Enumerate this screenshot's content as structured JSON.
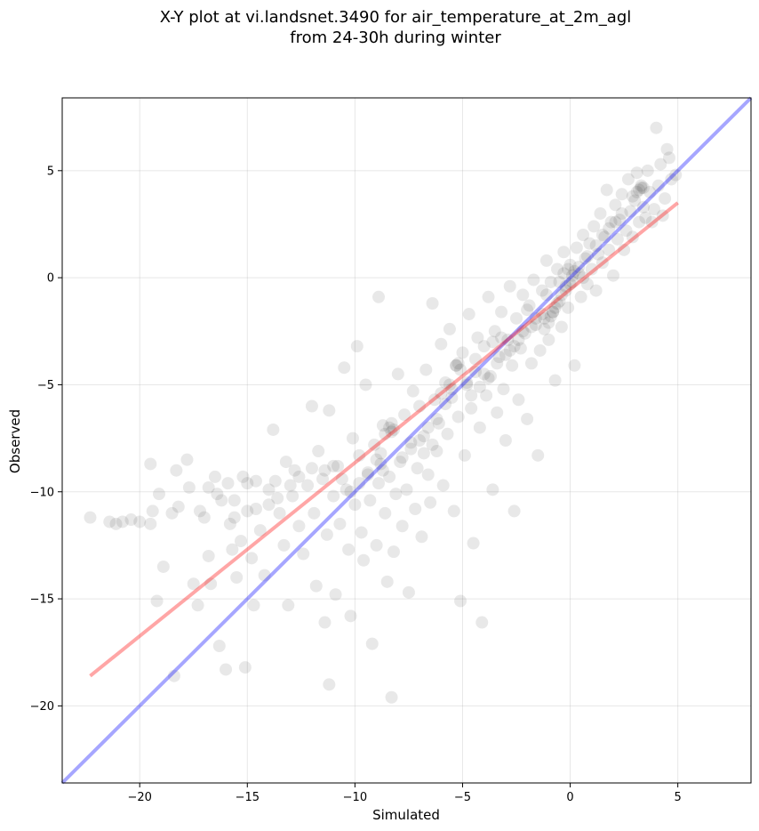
{
  "chart_data": {
    "type": "scatter",
    "title_line1": "X-Y plot at vi.landsnet.3490 for air_temperature_at_2m_agl",
    "title_line2": "from 24-30h during winter",
    "xlabel": "Simulated",
    "ylabel": "Observed",
    "xlim": [
      -23.6,
      8.4
    ],
    "ylim": [
      -23.6,
      8.4
    ],
    "x_ticks": [
      -20,
      -15,
      -10,
      -5,
      0,
      5
    ],
    "y_ticks": [
      -20,
      -15,
      -10,
      -5,
      0,
      5
    ],
    "x_tick_labels": [
      "−20",
      "−15",
      "−10",
      "−5",
      "0",
      "5"
    ],
    "y_tick_labels": [
      "−20",
      "−15",
      "−10",
      "−5",
      "0",
      "5"
    ],
    "grid": true,
    "marker_color": "#000000",
    "marker_alpha": 0.09,
    "points": [
      [
        -22.3,
        -11.2
      ],
      [
        -21.4,
        -11.4
      ],
      [
        -21.1,
        -11.5
      ],
      [
        -20.8,
        -11.4
      ],
      [
        -20.4,
        -11.3
      ],
      [
        -20.0,
        -11.4
      ],
      [
        -19.5,
        -8.7
      ],
      [
        -19.5,
        -11.5
      ],
      [
        -19.4,
        -10.9
      ],
      [
        -19.2,
        -15.1
      ],
      [
        -19.1,
        -10.1
      ],
      [
        -18.9,
        -13.5
      ],
      [
        -18.5,
        -11.0
      ],
      [
        -18.4,
        -18.6
      ],
      [
        -18.3,
        -9.0
      ],
      [
        -18.2,
        -10.7
      ],
      [
        -17.8,
        -8.5
      ],
      [
        -17.7,
        -9.8
      ],
      [
        -17.5,
        -14.3
      ],
      [
        -17.3,
        -15.3
      ],
      [
        -17.0,
        -11.2
      ],
      [
        -16.8,
        -13.0
      ],
      [
        -16.7,
        -14.3
      ],
      [
        -16.5,
        -9.3
      ],
      [
        -16.4,
        -10.1
      ],
      [
        -16.3,
        -17.2
      ],
      [
        -16.0,
        -18.3
      ],
      [
        -15.9,
        -9.6
      ],
      [
        -15.8,
        -11.5
      ],
      [
        -15.7,
        -12.7
      ],
      [
        -15.6,
        -10.4
      ],
      [
        -15.5,
        -14.0
      ],
      [
        -15.3,
        -12.3
      ],
      [
        -15.2,
        -9.3
      ],
      [
        -15.1,
        -18.2
      ],
      [
        -15.0,
        -10.9
      ],
      [
        -14.8,
        -13.1
      ],
      [
        -14.7,
        -15.3
      ],
      [
        -14.6,
        -9.5
      ],
      [
        -14.4,
        -11.8
      ],
      [
        -14.2,
        -13.9
      ],
      [
        -14.0,
        -10.6
      ],
      [
        -13.8,
        -7.1
      ],
      [
        -13.7,
        -9.5
      ],
      [
        -13.5,
        -11.0
      ],
      [
        -13.3,
        -12.5
      ],
      [
        -13.2,
        -8.6
      ],
      [
        -13.1,
        -15.3
      ],
      [
        -12.9,
        -10.2
      ],
      [
        -12.8,
        -9.0
      ],
      [
        -12.6,
        -11.6
      ],
      [
        -12.4,
        -12.9
      ],
      [
        -12.2,
        -9.7
      ],
      [
        -12.0,
        -6.0
      ],
      [
        -11.9,
        -11.0
      ],
      [
        -11.8,
        -14.4
      ],
      [
        -11.7,
        -8.1
      ],
      [
        -11.5,
        -9.4
      ],
      [
        -11.4,
        -16.1
      ],
      [
        -11.3,
        -12.0
      ],
      [
        -11.2,
        -6.2
      ],
      [
        -11.2,
        -19.0
      ],
      [
        -11.0,
        -10.2
      ],
      [
        -10.9,
        -14.8
      ],
      [
        -10.8,
        -8.8
      ],
      [
        -10.7,
        -11.5
      ],
      [
        -10.5,
        -4.2
      ],
      [
        -10.4,
        -9.9
      ],
      [
        -10.3,
        -12.7
      ],
      [
        -10.2,
        -15.8
      ],
      [
        -10.1,
        -7.5
      ],
      [
        -10.0,
        -10.6
      ],
      [
        -9.9,
        -3.2
      ],
      [
        -9.8,
        -8.3
      ],
      [
        -9.7,
        -11.9
      ],
      [
        -9.6,
        -13.2
      ],
      [
        -9.5,
        -5.0
      ],
      [
        -9.4,
        -9.1
      ],
      [
        -9.3,
        -10.4
      ],
      [
        -9.2,
        -17.1
      ],
      [
        -9.1,
        -7.8
      ],
      [
        -9.0,
        -12.5
      ],
      [
        -8.9,
        -9.6
      ],
      [
        -8.9,
        -0.9
      ],
      [
        -8.8,
        -8.2
      ],
      [
        -8.7,
        -6.9
      ],
      [
        -8.6,
        -11.0
      ],
      [
        -8.5,
        -14.2
      ],
      [
        -8.4,
        -9.3
      ],
      [
        -8.3,
        -7.2
      ],
      [
        -8.3,
        -19.6
      ],
      [
        -8.2,
        -12.8
      ],
      [
        -8.1,
        -10.1
      ],
      [
        -8.0,
        -4.5
      ],
      [
        -7.9,
        -8.6
      ],
      [
        -7.8,
        -11.6
      ],
      [
        -7.7,
        -6.4
      ],
      [
        -7.6,
        -9.9
      ],
      [
        -7.5,
        -14.7
      ],
      [
        -7.4,
        -7.7
      ],
      [
        -7.3,
        -5.3
      ],
      [
        -7.2,
        -10.8
      ],
      [
        -7.1,
        -8.9
      ],
      [
        -7.0,
        -6.0
      ],
      [
        -6.9,
        -12.1
      ],
      [
        -6.8,
        -7.4
      ],
      [
        -6.7,
        -4.3
      ],
      [
        -6.6,
        -9.2
      ],
      [
        -6.5,
        -10.5
      ],
      [
        -6.4,
        -1.2
      ],
      [
        -6.3,
        -5.7
      ],
      [
        -6.2,
        -8.1
      ],
      [
        -6.1,
        -6.8
      ],
      [
        -6.0,
        -3.1
      ],
      [
        -5.9,
        -9.7
      ],
      [
        -5.8,
        -4.9
      ],
      [
        -5.7,
        -7.3
      ],
      [
        -5.6,
        -2.4
      ],
      [
        -5.5,
        -5.6
      ],
      [
        -5.4,
        -10.9
      ],
      [
        -5.3,
        -4.1
      ],
      [
        -5.2,
        -6.5
      ],
      [
        -5.1,
        -15.1
      ],
      [
        -5.0,
        -3.5
      ],
      [
        -4.9,
        -8.3
      ],
      [
        -4.8,
        -5.0
      ],
      [
        -4.7,
        -1.7
      ],
      [
        -4.6,
        -6.1
      ],
      [
        -4.5,
        -12.4
      ],
      [
        -4.4,
        -4.4
      ],
      [
        -4.3,
        -2.8
      ],
      [
        -4.2,
        -7.0
      ],
      [
        -4.1,
        -16.1
      ],
      [
        -4.0,
        -3.2
      ],
      [
        -3.9,
        -5.5
      ],
      [
        -3.8,
        -0.9
      ],
      [
        -3.7,
        -4.6
      ],
      [
        -3.6,
        -9.9
      ],
      [
        -3.5,
        -2.5
      ],
      [
        -3.4,
        -6.3
      ],
      [
        -3.3,
        -3.7
      ],
      [
        -3.2,
        -1.6
      ],
      [
        -3.1,
        -5.2
      ],
      [
        -3.0,
        -7.6
      ],
      [
        -2.9,
        -2.9
      ],
      [
        -2.8,
        -0.4
      ],
      [
        -2.7,
        -4.1
      ],
      [
        -2.6,
        -10.9
      ],
      [
        -2.5,
        -1.9
      ],
      [
        -2.4,
        -5.7
      ],
      [
        -2.3,
        -3.3
      ],
      [
        -2.2,
        -0.8
      ],
      [
        -2.1,
        -2.6
      ],
      [
        -2.0,
        -6.6
      ],
      [
        -1.9,
        -1.3
      ],
      [
        -1.8,
        -4.0
      ],
      [
        -1.7,
        -0.1
      ],
      [
        -1.6,
        -2.2
      ],
      [
        -1.5,
        -8.3
      ],
      [
        -1.4,
        -3.4
      ],
      [
        -1.3,
        -0.6
      ],
      [
        -1.2,
        -1.9
      ],
      [
        -1.1,
        0.8
      ],
      [
        -1.0,
        -2.9
      ],
      [
        -0.9,
        -0.2
      ],
      [
        -0.8,
        -1.6
      ],
      [
        -0.7,
        -4.8
      ],
      [
        -0.6,
        0.4
      ],
      [
        -0.5,
        -1.1
      ],
      [
        -0.4,
        -2.3
      ],
      [
        -0.3,
        1.2
      ],
      [
        -0.2,
        -0.4
      ],
      [
        -0.1,
        -1.4
      ],
      [
        0.0,
        0.6
      ],
      [
        0.1,
        -0.2
      ],
      [
        0.2,
        -4.1
      ],
      [
        0.3,
        1.4
      ],
      [
        0.4,
        0.2
      ],
      [
        0.5,
        -0.9
      ],
      [
        0.6,
        2.0
      ],
      [
        0.7,
        0.9
      ],
      [
        0.8,
        -0.3
      ],
      [
        0.9,
        1.6
      ],
      [
        1.0,
        0.4
      ],
      [
        1.1,
        2.4
      ],
      [
        1.2,
        -0.6
      ],
      [
        1.3,
        1.1
      ],
      [
        1.4,
        3.0
      ],
      [
        1.5,
        0.7
      ],
      [
        1.6,
        1.9
      ],
      [
        1.7,
        4.1
      ],
      [
        1.8,
        1.3
      ],
      [
        1.9,
        2.6
      ],
      [
        2.0,
        0.1
      ],
      [
        2.1,
        3.4
      ],
      [
        2.2,
        1.8
      ],
      [
        2.3,
        2.7
      ],
      [
        2.4,
        3.9
      ],
      [
        2.5,
        1.3
      ],
      [
        2.6,
        2.2
      ],
      [
        2.7,
        4.6
      ],
      [
        2.8,
        3.1
      ],
      [
        2.9,
        1.9
      ],
      [
        3.0,
        3.6
      ],
      [
        3.1,
        4.9
      ],
      [
        3.2,
        2.6
      ],
      [
        3.3,
        4.2
      ],
      [
        3.4,
        3.3
      ],
      [
        3.5,
        2.8
      ],
      [
        3.6,
        5.0
      ],
      [
        3.7,
        4.0
      ],
      [
        3.8,
        2.6
      ],
      [
        3.9,
        3.2
      ],
      [
        4.0,
        7.0
      ],
      [
        4.1,
        4.3
      ],
      [
        4.2,
        5.3
      ],
      [
        4.3,
        2.9
      ],
      [
        4.4,
        3.7
      ],
      [
        4.5,
        6.0
      ],
      [
        4.6,
        5.6
      ],
      [
        4.7,
        4.6
      ],
      [
        4.9,
        4.8
      ],
      [
        -8.4,
        -7.0
      ],
      [
        -8.3,
        -6.8
      ],
      [
        -8.2,
        -7.1
      ],
      [
        -8.6,
        -7.3
      ],
      [
        -8.8,
        -8.7
      ],
      [
        -8.7,
        -9.0
      ],
      [
        -9.0,
        -8.5
      ],
      [
        -5.3,
        -4.1
      ],
      [
        -5.1,
        -4.3
      ],
      [
        -5.2,
        -4.0
      ],
      [
        -5.5,
        -5.2
      ],
      [
        -5.6,
        -5.0
      ],
      [
        -0.4,
        -0.8
      ],
      [
        -0.2,
        -0.6
      ],
      [
        0.0,
        -0.3
      ],
      [
        0.1,
        0.1
      ],
      [
        0.2,
        0.3
      ],
      [
        -0.6,
        -1.2
      ],
      [
        -0.8,
        -1.6
      ],
      [
        -1.0,
        -2.1
      ],
      [
        -0.9,
        -1.8
      ],
      [
        -0.7,
        -1.4
      ],
      [
        -1.2,
        -2.4
      ],
      [
        -0.3,
        0.2
      ],
      [
        0.4,
        0.5
      ],
      [
        0.6,
        0.0
      ],
      [
        -0.1,
        0.4
      ],
      [
        -0.5,
        -0.2
      ],
      [
        -1.1,
        -0.8
      ],
      [
        -1.3,
        -1.7
      ],
      [
        3.2,
        4.1
      ],
      [
        3.3,
        4.3
      ],
      [
        3.1,
        4.0
      ],
      [
        3.4,
        4.2
      ],
      [
        2.9,
        3.8
      ],
      [
        -2.2,
        -2.5
      ],
      [
        -2.4,
        -2.9
      ],
      [
        -2.6,
        -3.2
      ],
      [
        -3.0,
        -3.6
      ],
      [
        -3.4,
        -4.0
      ],
      [
        -3.8,
        -4.7
      ],
      [
        -4.2,
        -5.1
      ],
      [
        -4.6,
        -5.5
      ],
      [
        -5.8,
        -5.9
      ],
      [
        -6.2,
        -6.6
      ],
      [
        -6.6,
        -7.0
      ],
      [
        -7.0,
        -7.6
      ],
      [
        -7.4,
        -8.0
      ],
      [
        -7.8,
        -8.4
      ],
      [
        -9.4,
        -9.2
      ],
      [
        -9.8,
        -9.6
      ],
      [
        -10.2,
        -10.0
      ],
      [
        -10.6,
        -9.4
      ],
      [
        -11.0,
        -8.8
      ],
      [
        -11.4,
        -9.0
      ],
      [
        -12.0,
        -8.9
      ],
      [
        -12.6,
        -9.3
      ],
      [
        -13.0,
        -9.7
      ],
      [
        -13.6,
        -10.3
      ],
      [
        -14.0,
        -9.9
      ],
      [
        -14.6,
        -10.8
      ],
      [
        -15.0,
        -9.6
      ],
      [
        -15.6,
        -11.2
      ],
      [
        -16.2,
        -10.4
      ],
      [
        -16.8,
        -9.8
      ],
      [
        -17.2,
        -10.9
      ],
      [
        1.2,
        1.5
      ],
      [
        1.5,
        2.0
      ],
      [
        1.8,
        2.3
      ],
      [
        2.1,
        2.6
      ],
      [
        2.4,
        3.0
      ],
      [
        0.8,
        1.0
      ],
      [
        -1.6,
        -1.9
      ],
      [
        -1.8,
        -2.3
      ],
      [
        -2.0,
        -1.5
      ],
      [
        -2.8,
        -3.4
      ],
      [
        -3.2,
        -2.8
      ],
      [
        -3.6,
        -3.0
      ],
      [
        -4.0,
        -4.5
      ],
      [
        -4.4,
        -3.8
      ],
      [
        -4.8,
        -4.9
      ],
      [
        -6.0,
        -5.4
      ],
      [
        -6.4,
        -7.8
      ],
      [
        -6.8,
        -8.2
      ]
    ],
    "lines": [
      {
        "color": "#0000ff",
        "alpha": 0.35,
        "x": [
          -23.6,
          8.4
        ],
        "y": [
          -23.6,
          8.4
        ]
      },
      {
        "color": "#ff0000",
        "alpha": 0.35,
        "x": [
          -22.3,
          5.0
        ],
        "y": [
          -18.6,
          3.5
        ]
      }
    ]
  }
}
